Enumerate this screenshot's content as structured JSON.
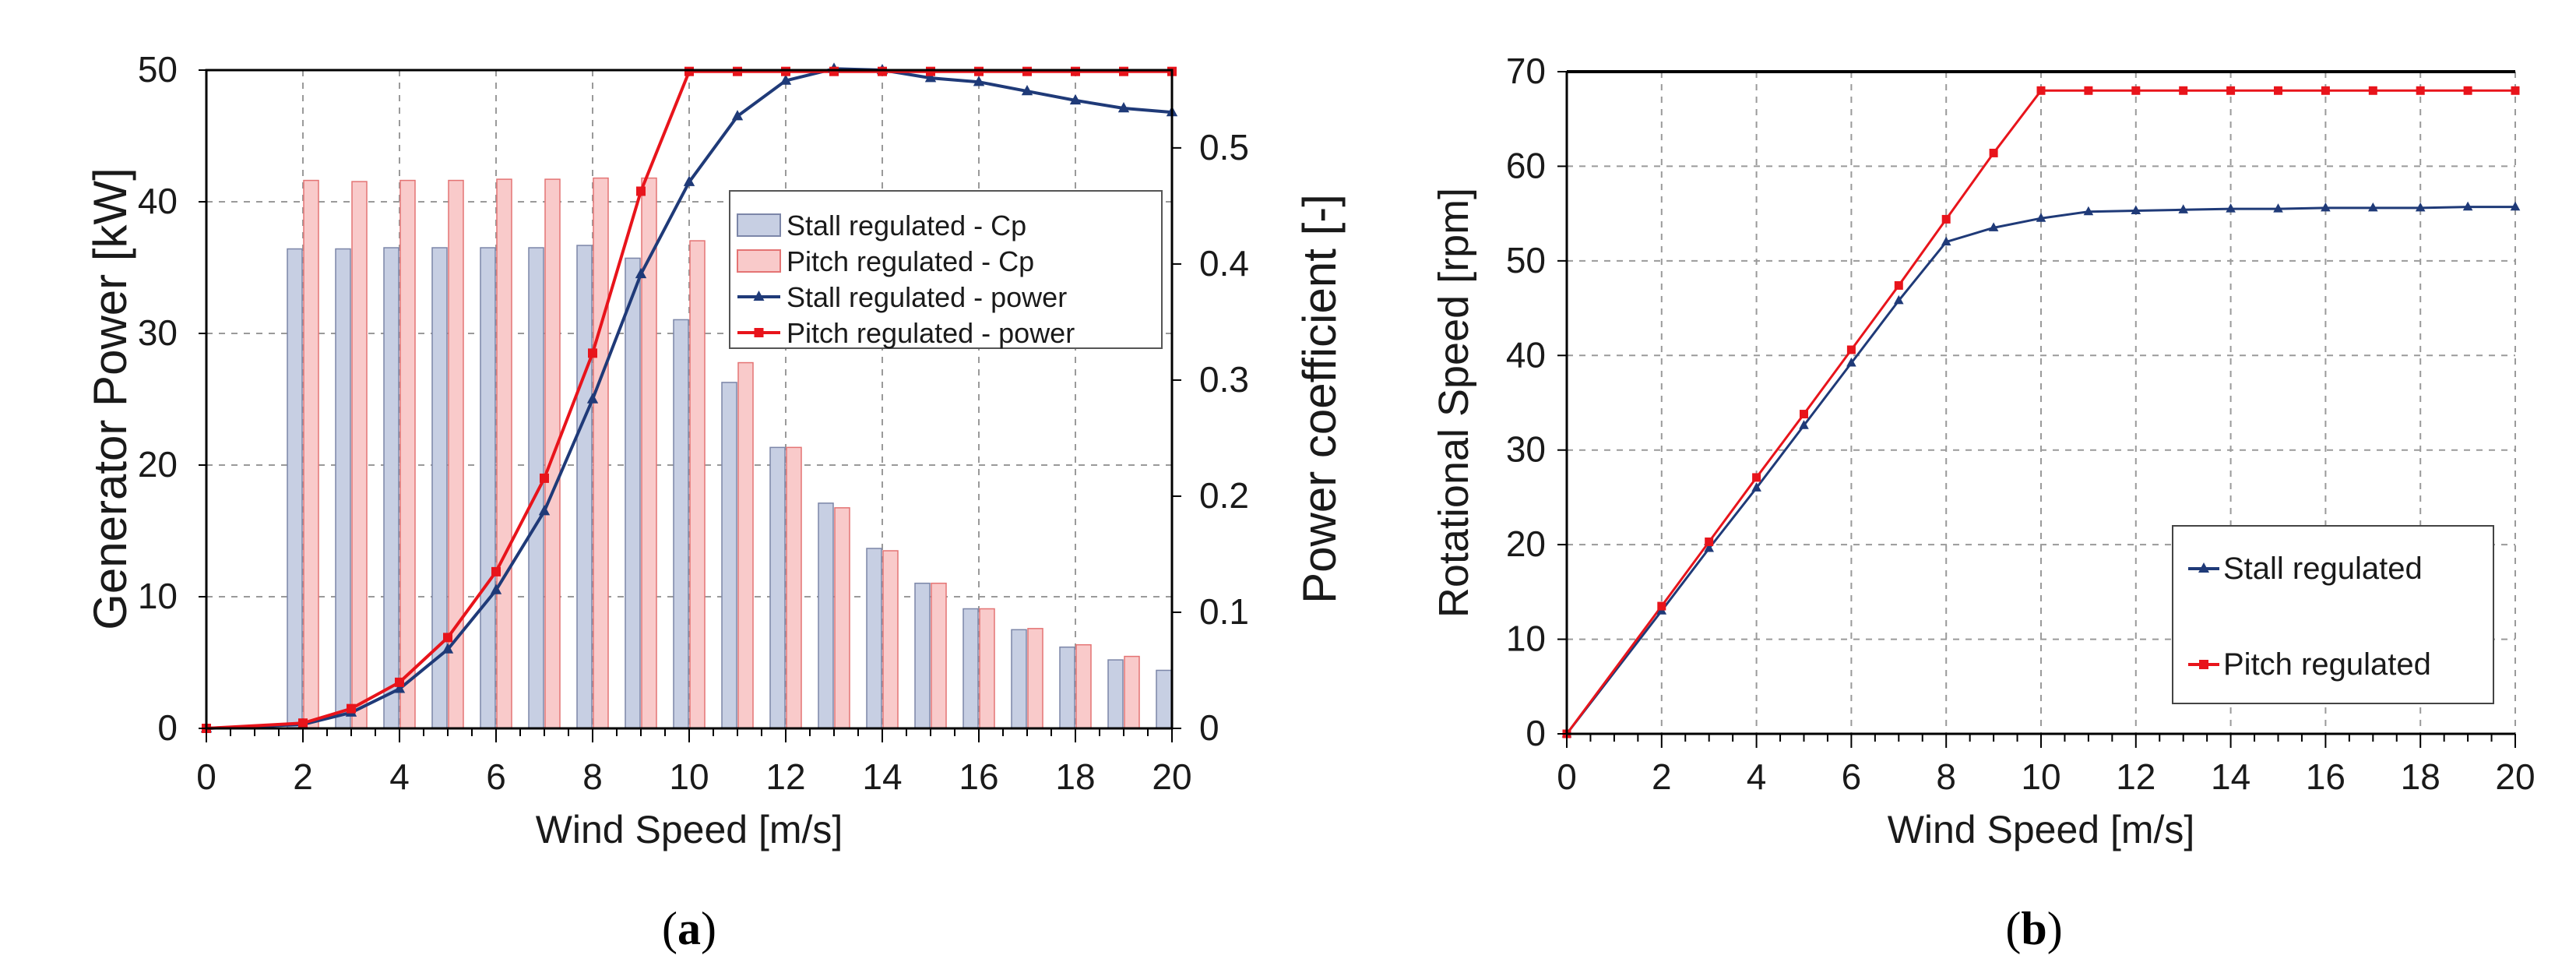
{
  "colors": {
    "stall_line": "#1f3a78",
    "pitch_line": "#e8141b",
    "stall_bar_fill": "#c7cfe3",
    "stall_bar_stroke": "#7c86a8",
    "pitch_bar_fill": "#f9caca",
    "pitch_bar_stroke": "#e47474",
    "grid": "#9a9a9a"
  },
  "chart_data": [
    {
      "id": "a",
      "type": "bar",
      "caption_letter": "a",
      "caption_open": "(",
      "caption_close": ")",
      "xlabel": "Wind Speed [m/s]",
      "ylabel_left": "Generator Power [kW]",
      "ylabel_right": "Power coefficient [-]",
      "xlim": [
        0,
        20
      ],
      "ylim_left": [
        0,
        50
      ],
      "ylim_right": [
        0,
        0.567
      ],
      "x_ticks": [
        "0",
        "2",
        "4",
        "6",
        "8",
        "10",
        "12",
        "14",
        "16",
        "18",
        "20"
      ],
      "y_left_ticks": [
        "0",
        "10",
        "20",
        "30",
        "40",
        "50"
      ],
      "y_right_ticks": [
        "0",
        "0.1",
        "0.2",
        "0.3",
        "0.4",
        "0.5"
      ],
      "grid": true,
      "legend_position": "upper-right",
      "legend": [
        "Stall regulated - Cp",
        "Pitch regulated - Cp",
        "Stall regulated - power",
        "Pitch regulated - power"
      ],
      "bars": {
        "x": [
          2,
          3,
          4,
          5,
          6,
          7,
          8,
          9,
          10,
          11,
          12,
          13,
          14,
          15,
          16,
          17,
          18,
          19,
          20
        ],
        "stall_cp": [
          0.413,
          0.413,
          0.414,
          0.414,
          0.414,
          0.414,
          0.416,
          0.405,
          0.352,
          0.298,
          0.242,
          0.194,
          0.155,
          0.125,
          0.103,
          0.085,
          0.07,
          0.059,
          0.05
        ],
        "pitch_cp": [
          0.472,
          0.471,
          0.472,
          0.472,
          0.473,
          0.473,
          0.474,
          0.474,
          0.42,
          0.315,
          0.242,
          0.19,
          0.153,
          0.125,
          0.103,
          0.086,
          0.072,
          0.062,
          null
        ]
      },
      "series": [
        {
          "name": "Stall regulated - power",
          "x": [
            0,
            2,
            3,
            4,
            5,
            6,
            7,
            8,
            9,
            10,
            11,
            12,
            13,
            14,
            15,
            16,
            17,
            18,
            19,
            20
          ],
          "y": [
            0,
            0.3,
            1.2,
            3.0,
            6.0,
            10.5,
            16.5,
            25.0,
            34.5,
            41.5,
            46.5,
            49.2,
            50.1,
            50.0,
            49.4,
            49.1,
            48.4,
            47.7,
            47.1,
            46.8
          ]
        },
        {
          "name": "Pitch regulated - power",
          "x": [
            0,
            2,
            3,
            4,
            5,
            6,
            7,
            8,
            9,
            10,
            11,
            12,
            13,
            14,
            15,
            16,
            17,
            18,
            19,
            20
          ],
          "y": [
            0,
            0.4,
            1.5,
            3.5,
            6.9,
            11.9,
            19.0,
            28.5,
            40.8,
            49.9,
            49.9,
            49.9,
            49.9,
            49.9,
            49.9,
            49.9,
            49.9,
            49.9,
            49.9,
            49.9
          ]
        }
      ]
    },
    {
      "id": "b",
      "type": "line",
      "caption_letter": "b",
      "caption_open": "(",
      "caption_close": ")",
      "xlabel": "Wind Speed [m/s]",
      "ylabel": "Rotational Speed [rpm]",
      "xlim": [
        0,
        20
      ],
      "ylim": [
        0,
        70
      ],
      "x_ticks": [
        "0",
        "2",
        "4",
        "6",
        "8",
        "10",
        "12",
        "14",
        "16",
        "18",
        "20"
      ],
      "y_ticks": [
        "0",
        "10",
        "20",
        "30",
        "40",
        "50",
        "60",
        "70"
      ],
      "grid": true,
      "legend_position": "lower-right",
      "legend": [
        "Stall regulated",
        "Pitch regulated"
      ],
      "series": [
        {
          "name": "Stall regulated",
          "x": [
            0,
            2,
            3,
            4,
            5,
            6,
            7,
            8,
            9,
            10,
            11,
            12,
            13,
            14,
            15,
            16,
            17,
            18,
            19,
            20
          ],
          "y": [
            0,
            13.0,
            19.6,
            26.0,
            32.6,
            39.2,
            45.8,
            52.0,
            53.5,
            54.5,
            55.2,
            55.3,
            55.4,
            55.5,
            55.5,
            55.6,
            55.6,
            55.6,
            55.7,
            55.7
          ]
        },
        {
          "name": "Pitch regulated",
          "x": [
            0,
            2,
            3,
            4,
            5,
            6,
            7,
            8,
            9,
            10,
            11,
            12,
            13,
            14,
            15,
            16,
            17,
            18,
            19,
            20
          ],
          "y": [
            0,
            13.5,
            20.3,
            27.1,
            33.8,
            40.6,
            47.4,
            54.4,
            61.4,
            68.0,
            68.0,
            68.0,
            68.0,
            68.0,
            68.0,
            68.0,
            68.0,
            68.0,
            68.0,
            68.0
          ]
        }
      ]
    }
  ]
}
